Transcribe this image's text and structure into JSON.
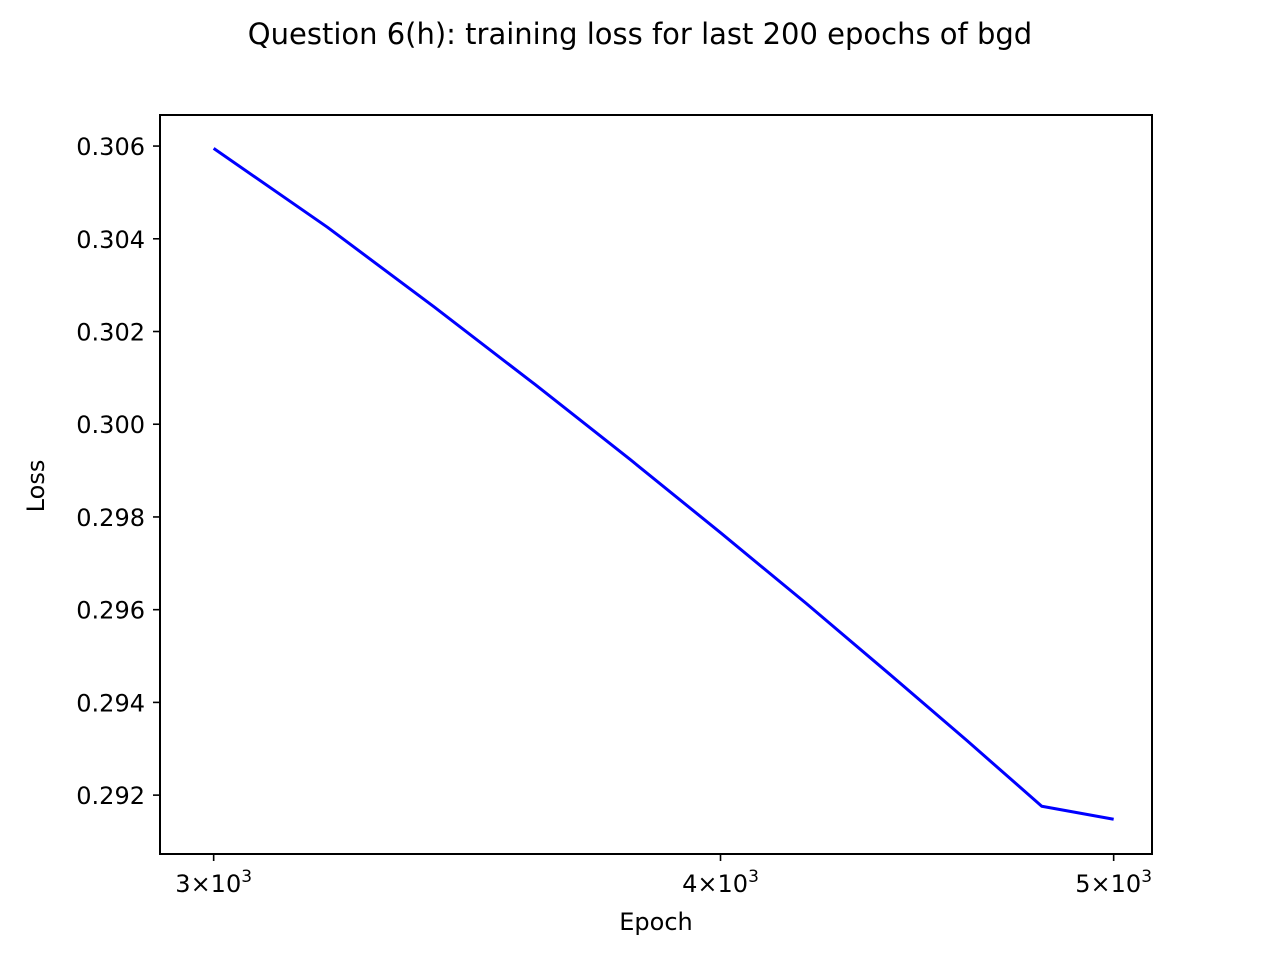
{
  "chart_data": {
    "type": "line",
    "title": "Question 6(h): training loss for last 200 epochs of bgd",
    "xlabel": "Epoch",
    "ylabel": "Loss",
    "x_scale": "log",
    "x_ticks": [
      {
        "value": 3000,
        "mantissa": "3",
        "base": "10",
        "exponent": "3"
      },
      {
        "value": 4000,
        "mantissa": "4",
        "base": "10",
        "exponent": "3"
      },
      {
        "value": 5000,
        "mantissa": "5",
        "base": "10",
        "exponent": "3"
      }
    ],
    "y_ticks": [
      {
        "value": 0.292,
        "label": "0.292"
      },
      {
        "value": 0.294,
        "label": "0.294"
      },
      {
        "value": 0.296,
        "label": "0.296"
      },
      {
        "value": 0.298,
        "label": "0.298"
      },
      {
        "value": 0.3,
        "label": "0.300"
      },
      {
        "value": 0.302,
        "label": "0.302"
      },
      {
        "value": 0.304,
        "label": "0.304"
      },
      {
        "value": 0.306,
        "label": "0.306"
      }
    ],
    "xlim": [
      2910,
      5110
    ],
    "ylim": [
      0.29073,
      0.30667
    ],
    "grid": false,
    "series": [
      {
        "color": "#0000ff",
        "x": [
          3000,
          3200,
          3400,
          3600,
          3800,
          4000,
          4200,
          4400,
          4600,
          4800,
          5000
        ],
        "y": [
          0.30595,
          0.30425,
          0.30253,
          0.30086,
          0.29924,
          0.29766,
          0.29613,
          0.29463,
          0.29318,
          0.29176,
          0.29148
        ]
      }
    ]
  }
}
